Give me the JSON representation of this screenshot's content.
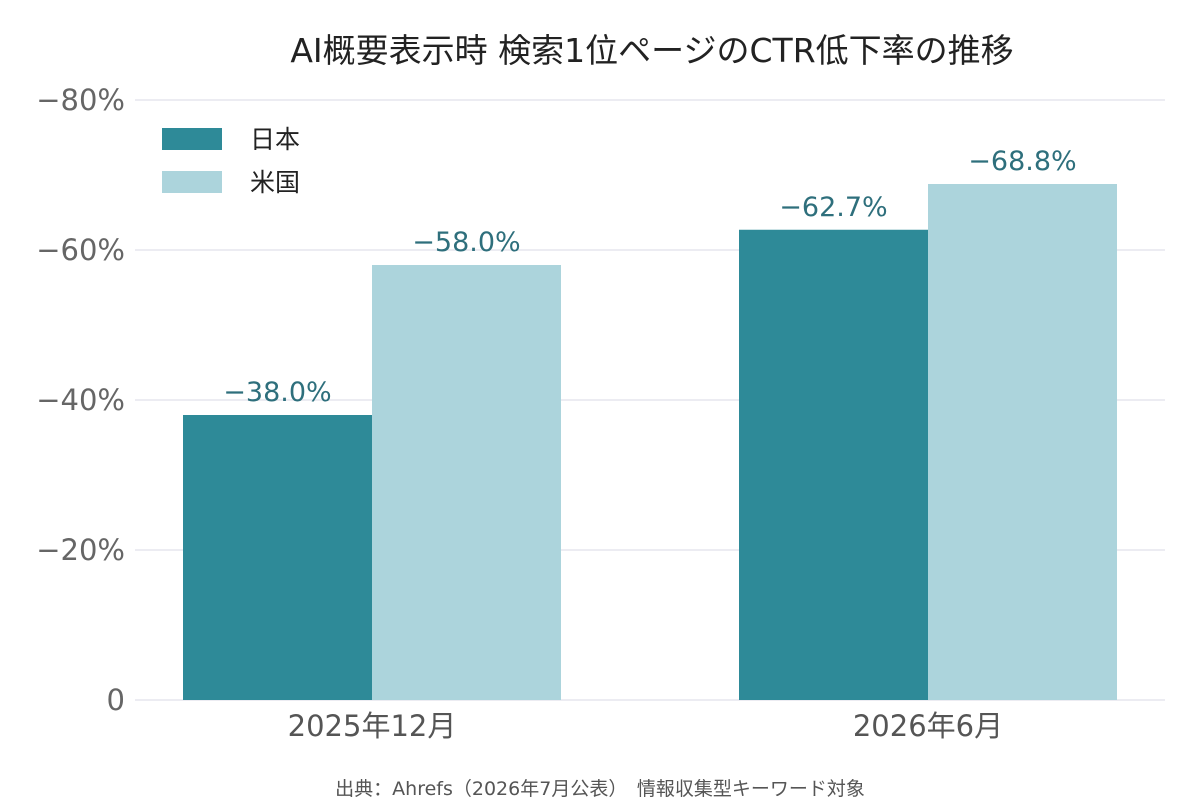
{
  "chart_data": {
    "type": "bar",
    "title": "AI概要表示時 検索1位ページのCTR低下率の推移",
    "categories": [
      "2025年12月",
      "2026年6月"
    ],
    "series": [
      {
        "name": "日本",
        "color": "#2e8a98",
        "values": [
          -38.0,
          -62.7
        ],
        "labels": [
          "−38.0%",
          "−62.7%"
        ]
      },
      {
        "name": "米国",
        "color": "#acd4dc",
        "values": [
          -58.0,
          -68.8
        ],
        "labels": [
          "−58.0%",
          "−68.8%"
        ]
      }
    ],
    "ylim": [
      0,
      -80
    ],
    "yticks": [
      0,
      -20,
      -40,
      -60,
      -80
    ],
    "ytick_labels": [
      "0",
      "−20%",
      "−40%",
      "−60%",
      "−80%"
    ],
    "grid": true,
    "legend_position": "top-left",
    "source": "出典：Ahrefs（2026年7月公表）　情報収集型キーワード対象"
  }
}
